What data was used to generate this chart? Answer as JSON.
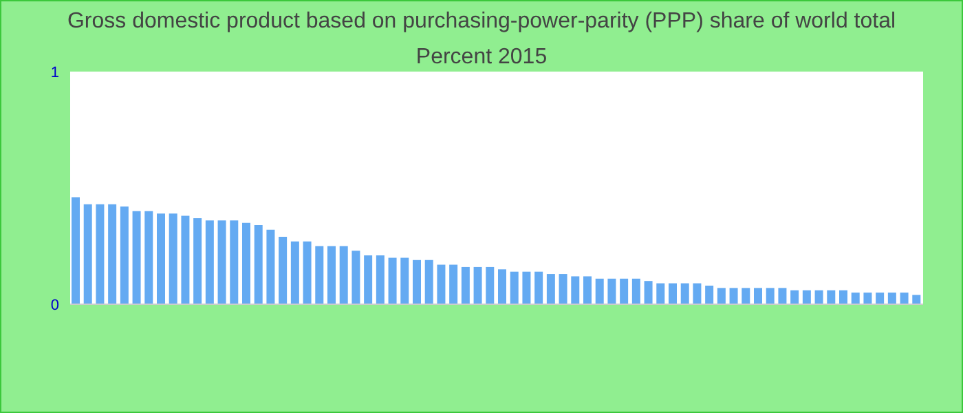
{
  "chart_data": {
    "type": "bar",
    "title": "Gross domestic product based on purchasing-power-parity (PPP) share of world total  Percent 2015",
    "categories": [
      null,
      null,
      null,
      null,
      null,
      null,
      null,
      null,
      null,
      null,
      null,
      null,
      null,
      null,
      null,
      null,
      null,
      null,
      null,
      null,
      null,
      null,
      null,
      null,
      null,
      null,
      null,
      null,
      null,
      null,
      null,
      null,
      null,
      null,
      null,
      null,
      null,
      null,
      null,
      null,
      null,
      null,
      null,
      null,
      null,
      null,
      null,
      null,
      null,
      null,
      null,
      null,
      null,
      null,
      null,
      null,
      null,
      null,
      null,
      null,
      null,
      null,
      null,
      null,
      null,
      null,
      null,
      null,
      null,
      null
    ],
    "values": [
      0.46,
      0.43,
      0.43,
      0.43,
      0.42,
      0.4,
      0.4,
      0.39,
      0.39,
      0.38,
      0.37,
      0.36,
      0.36,
      0.36,
      0.35,
      0.34,
      0.32,
      0.29,
      0.27,
      0.27,
      0.25,
      0.25,
      0.25,
      0.23,
      0.21,
      0.21,
      0.2,
      0.2,
      0.19,
      0.19,
      0.17,
      0.17,
      0.16,
      0.16,
      0.16,
      0.15,
      0.14,
      0.14,
      0.14,
      0.13,
      0.13,
      0.12,
      0.12,
      0.11,
      0.11,
      0.11,
      0.11,
      0.1,
      0.09,
      0.09,
      0.09,
      0.09,
      0.08,
      0.07,
      0.07,
      0.07,
      0.07,
      0.07,
      0.07,
      0.06,
      0.06,
      0.06,
      0.06,
      0.06,
      0.05,
      0.05,
      0.05,
      0.05,
      0.05,
      0.04
    ],
    "color": "#64aaf2",
    "ylim": [
      0,
      1
    ],
    "yticks": [
      0,
      1
    ],
    "grid": false
  }
}
